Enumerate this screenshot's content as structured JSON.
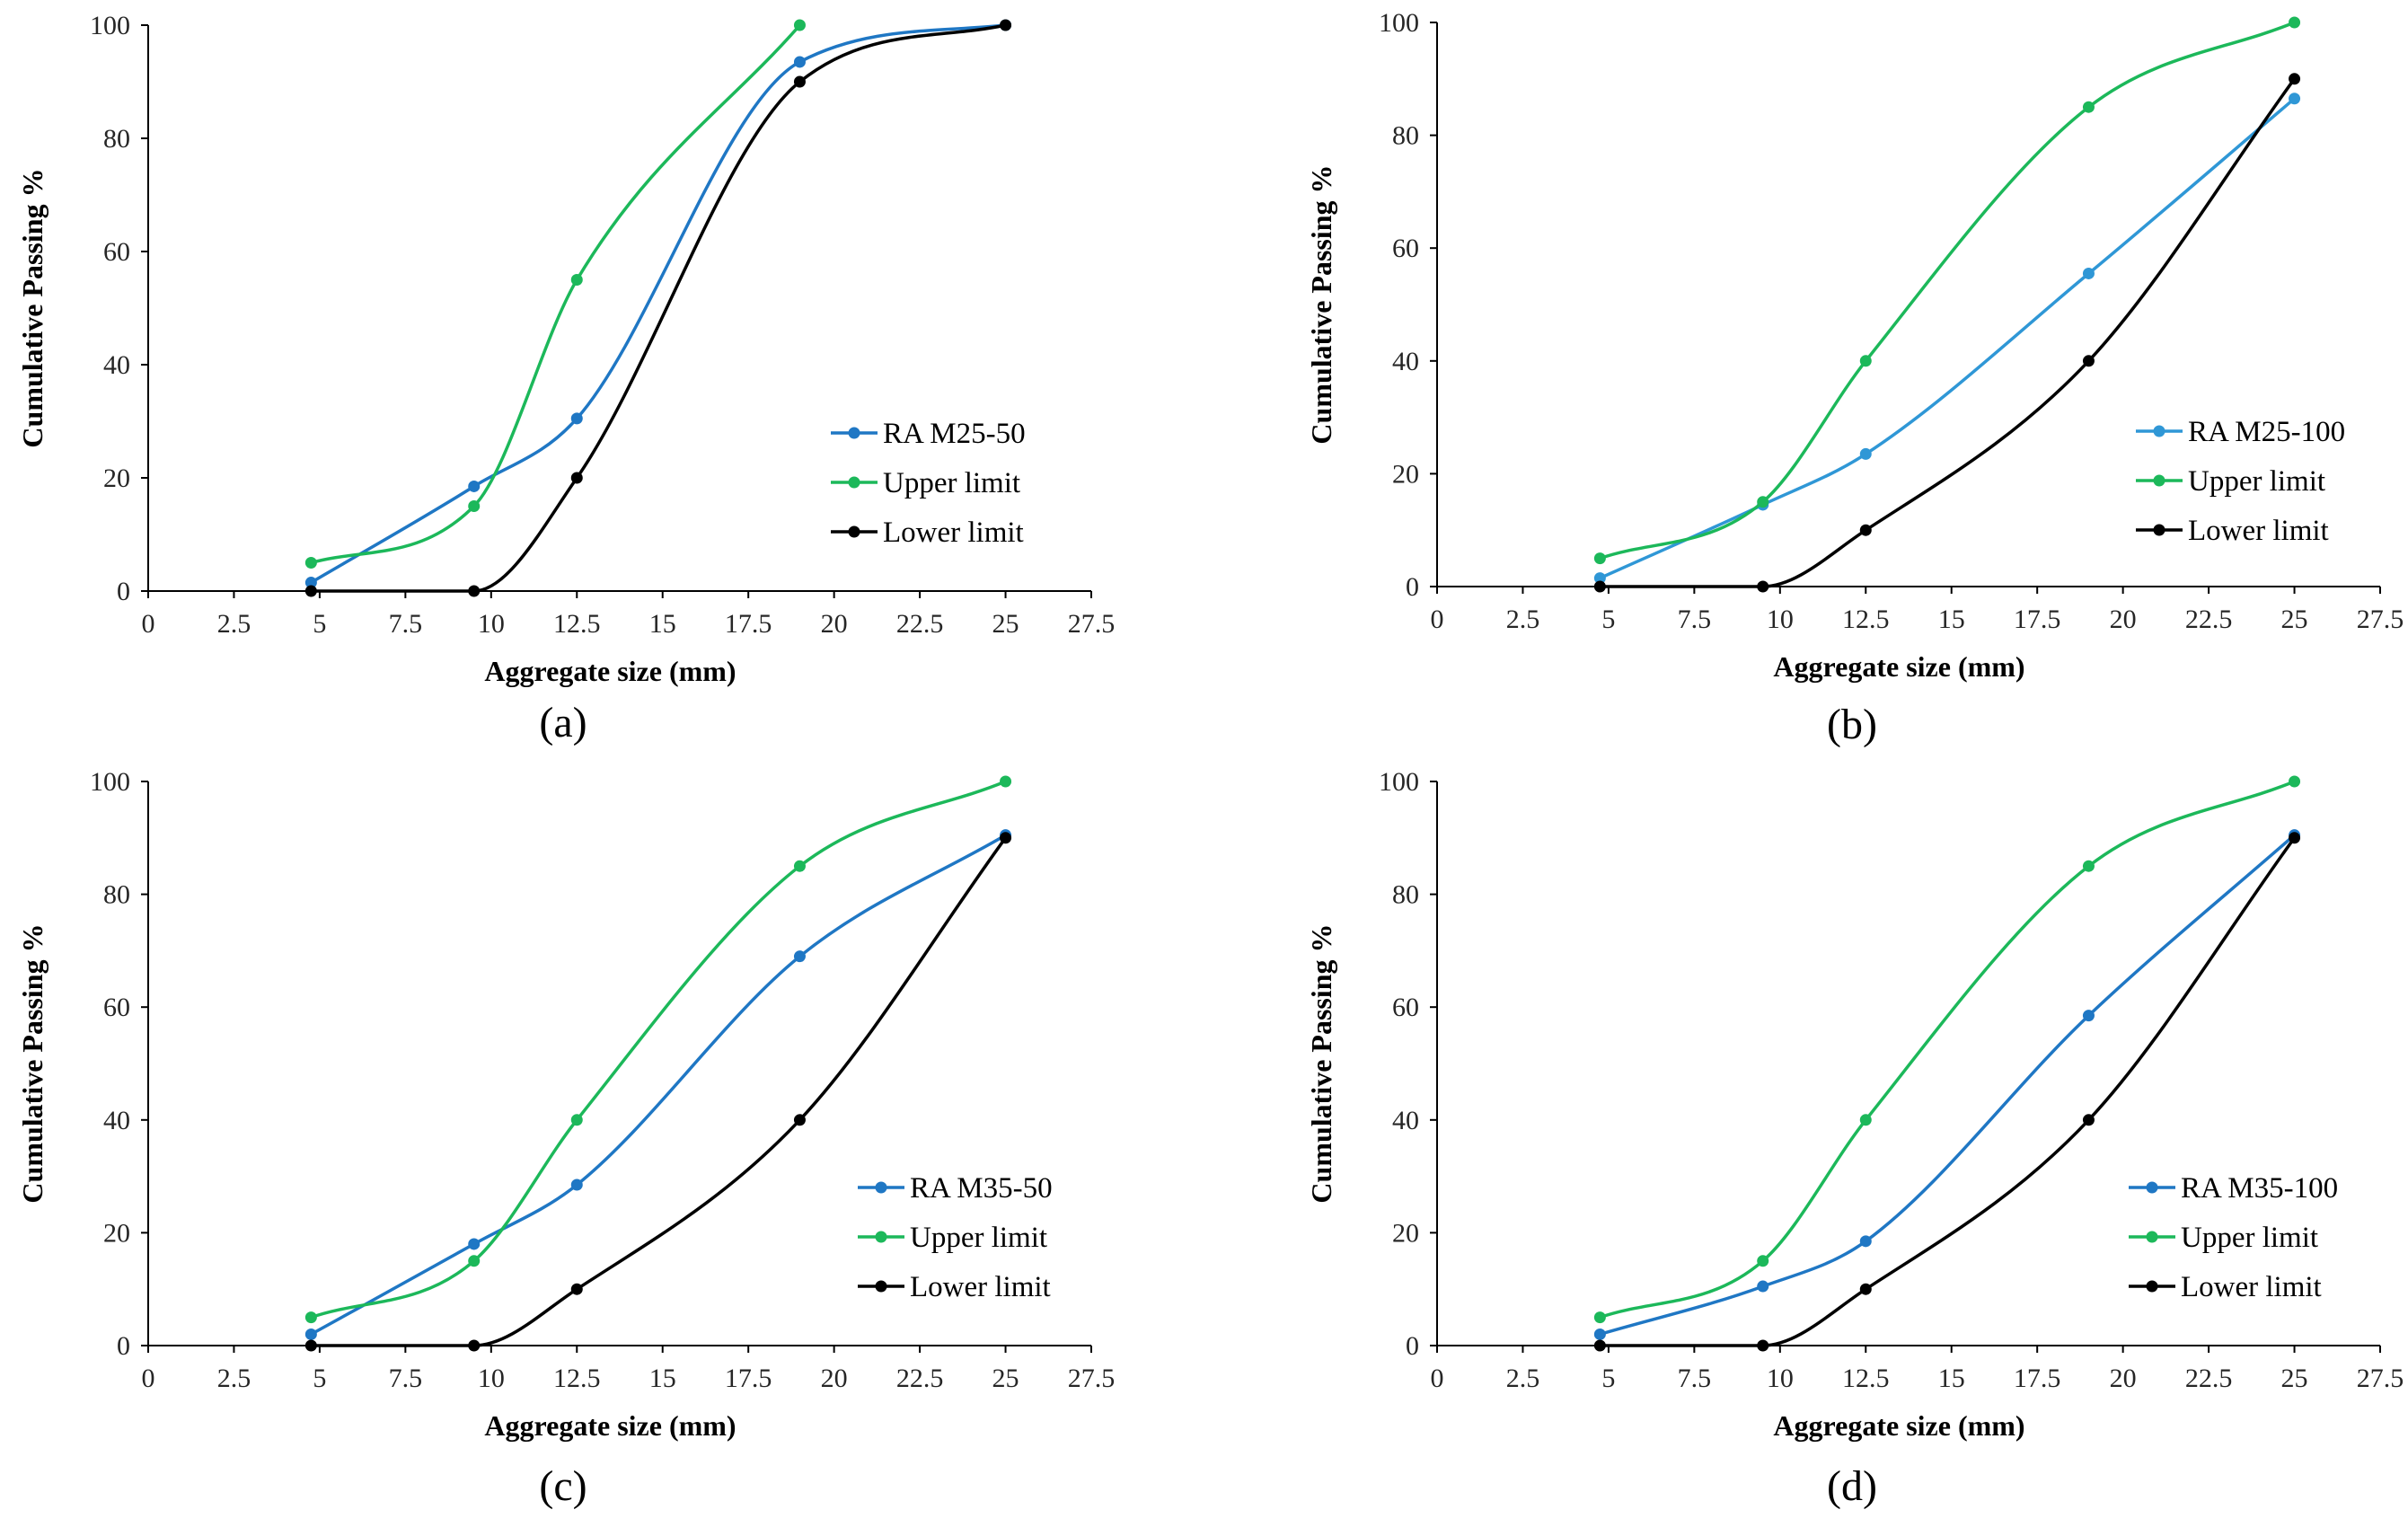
{
  "colors": {
    "ra_blue_dark": "#1f77c4",
    "ra_blue_light": "#2f97d6",
    "upper_green": "#1cb85a",
    "lower_black": "#000000",
    "axis": "#000000",
    "text": "#262626"
  },
  "chart_data": [
    {
      "type": "line",
      "panel": "(a)",
      "xlabel": "Aggregate size (mm)",
      "ylabel": "Cumulative Passing %",
      "xlim": [
        0,
        27.5
      ],
      "ylim": [
        0,
        100
      ],
      "x_ticks": [
        "0",
        "2.5",
        "5",
        "7.5",
        "10",
        "12.5",
        "15",
        "17.5",
        "20",
        "22.5",
        "25",
        "27.5"
      ],
      "y_ticks": [
        "0",
        "20",
        "40",
        "60",
        "80",
        "100"
      ],
      "legend_position": "right-middle",
      "series": [
        {
          "name": "RA M25-50",
          "color": "#1f77c4",
          "x": [
            4.75,
            9.5,
            12.5,
            19,
            25
          ],
          "y": [
            1.5,
            18.5,
            30.5,
            93.5,
            100
          ]
        },
        {
          "name": "Upper limit",
          "color": "#1cb85a",
          "x": [
            4.75,
            9.5,
            12.5,
            19
          ],
          "y": [
            5,
            15,
            55,
            100
          ]
        },
        {
          "name": "Lower limit",
          "color": "#000000",
          "x": [
            4.75,
            9.5,
            12.5,
            19,
            25
          ],
          "y": [
            0,
            0,
            20,
            90,
            100
          ]
        }
      ]
    },
    {
      "type": "line",
      "panel": "(b)",
      "xlabel": "Aggregate size (mm)",
      "ylabel": "Cumulative Passing %",
      "xlim": [
        0,
        27.5
      ],
      "ylim": [
        0,
        100
      ],
      "x_ticks": [
        "0",
        "2.5",
        "5",
        "7.5",
        "10",
        "12.5",
        "15",
        "17.5",
        "20",
        "22.5",
        "25",
        "27.5"
      ],
      "y_ticks": [
        "0",
        "20",
        "40",
        "60",
        "80",
        "100"
      ],
      "legend_position": "right-middle",
      "series": [
        {
          "name": "RA M25-100",
          "color": "#2f97d6",
          "x": [
            4.75,
            9.5,
            12.5,
            19,
            25
          ],
          "y": [
            1.5,
            14.5,
            23.5,
            55.5,
            86.5
          ]
        },
        {
          "name": "Upper limit",
          "color": "#1cb85a",
          "x": [
            4.75,
            9.5,
            12.5,
            19,
            25
          ],
          "y": [
            5,
            15,
            40,
            85,
            100
          ]
        },
        {
          "name": "Lower limit",
          "color": "#000000",
          "x": [
            4.75,
            9.5,
            12.5,
            19,
            25
          ],
          "y": [
            0,
            0,
            10,
            40,
            90
          ]
        }
      ]
    },
    {
      "type": "line",
      "panel": "(c)",
      "xlabel": "Aggregate size (mm)",
      "ylabel": "Cumulative Passing %",
      "xlim": [
        0,
        27.5
      ],
      "ylim": [
        0,
        100
      ],
      "x_ticks": [
        "0",
        "2.5",
        "5",
        "7.5",
        "10",
        "12.5",
        "15",
        "17.5",
        "20",
        "22.5",
        "25",
        "27.5"
      ],
      "y_ticks": [
        "0",
        "20",
        "40",
        "60",
        "80",
        "100"
      ],
      "legend_position": "right-bottom",
      "series": [
        {
          "name": "RA M35-50",
          "color": "#1f77c4",
          "x": [
            4.75,
            9.5,
            12.5,
            19,
            25
          ],
          "y": [
            2,
            18,
            28.5,
            69,
            90.5
          ]
        },
        {
          "name": "Upper limit",
          "color": "#1cb85a",
          "x": [
            4.75,
            9.5,
            12.5,
            19,
            25
          ],
          "y": [
            5,
            15,
            40,
            85,
            100
          ]
        },
        {
          "name": "Lower limit",
          "color": "#000000",
          "x": [
            4.75,
            9.5,
            12.5,
            19,
            25
          ],
          "y": [
            0,
            0,
            10,
            40,
            90
          ]
        }
      ]
    },
    {
      "type": "line",
      "panel": "(d)",
      "xlabel": "Aggregate size (mm)",
      "ylabel": "Cumulative Passing %",
      "xlim": [
        0,
        27.5
      ],
      "ylim": [
        0,
        100
      ],
      "x_ticks": [
        "0",
        "2.5",
        "5",
        "7.5",
        "10",
        "12.5",
        "15",
        "17.5",
        "20",
        "22.5",
        "25",
        "27.5"
      ],
      "y_ticks": [
        "0",
        "20",
        "40",
        "60",
        "80",
        "100"
      ],
      "legend_position": "right-bottom",
      "series": [
        {
          "name": "RA M35-100",
          "color": "#1f77c4",
          "x": [
            4.75,
            9.5,
            12.5,
            19,
            25
          ],
          "y": [
            2,
            10.5,
            18.5,
            58.5,
            90.5
          ]
        },
        {
          "name": "Upper limit",
          "color": "#1cb85a",
          "x": [
            4.75,
            9.5,
            12.5,
            19,
            25
          ],
          "y": [
            5,
            15,
            40,
            85,
            100
          ]
        },
        {
          "name": "Lower limit",
          "color": "#000000",
          "x": [
            4.75,
            9.5,
            12.5,
            19,
            25
          ],
          "y": [
            0,
            0,
            10,
            40,
            90
          ]
        }
      ]
    }
  ]
}
